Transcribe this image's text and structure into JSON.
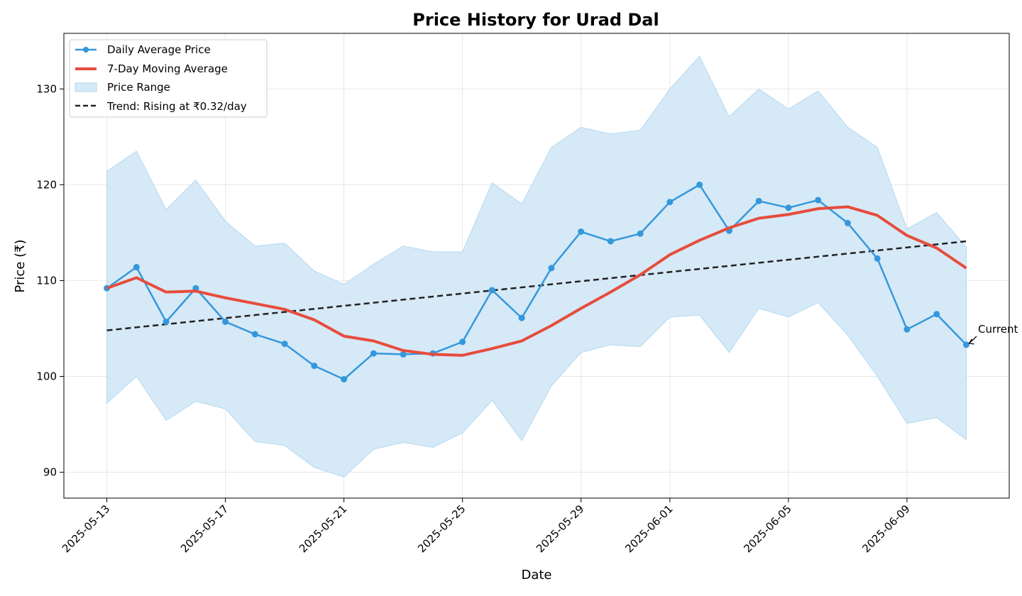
{
  "chart_data": {
    "type": "line",
    "title": "Price History for Urad Dal",
    "xlabel": "Date",
    "ylabel": "Price (₹)",
    "grid": true,
    "legend_position": "upper-left",
    "colors": {
      "daily": "#3498db",
      "moving_avg": "#e74c3c",
      "range_fill": "#d6e9f7",
      "range_edge": "#aed6f1",
      "trend": "#222222"
    },
    "x": [
      "2025-05-13",
      "2025-05-14",
      "2025-05-15",
      "2025-05-16",
      "2025-05-17",
      "2025-05-18",
      "2025-05-19",
      "2025-05-20",
      "2025-05-21",
      "2025-05-22",
      "2025-05-23",
      "2025-05-24",
      "2025-05-25",
      "2025-05-26",
      "2025-05-27",
      "2025-05-28",
      "2025-05-29",
      "2025-05-30",
      "2025-05-31",
      "2025-06-01",
      "2025-06-02",
      "2025-06-03",
      "2025-06-04",
      "2025-06-05",
      "2025-06-06",
      "2025-06-07",
      "2025-06-08",
      "2025-06-09",
      "2025-06-10",
      "2025-06-11"
    ],
    "x_ticks": [
      "2025-05-13",
      "2025-05-17",
      "2025-05-21",
      "2025-05-25",
      "2025-05-29",
      "2025-06-01",
      "2025-06-05",
      "2025-06-09"
    ],
    "ylim": [
      87.3,
      135.8
    ],
    "y_ticks": [
      90,
      100,
      110,
      120,
      130
    ],
    "series": [
      {
        "name": "Daily Average Price",
        "style": "line-markers",
        "values": [
          109.2,
          111.4,
          105.7,
          109.2,
          105.7,
          104.4,
          103.4,
          101.1,
          99.7,
          102.4,
          102.3,
          102.4,
          103.6,
          109.0,
          106.1,
          111.3,
          115.1,
          114.1,
          114.9,
          118.2,
          120.0,
          115.2,
          118.3,
          117.6,
          118.4,
          116.0,
          112.3,
          104.9,
          106.5,
          103.3
        ]
      },
      {
        "name": "7-Day Moving Average",
        "style": "thick-line",
        "values": [
          109.2,
          110.3,
          108.8,
          108.9,
          108.2,
          107.6,
          107.0,
          105.9,
          104.2,
          103.7,
          102.7,
          102.3,
          102.2,
          102.9,
          103.7,
          105.3,
          107.1,
          108.8,
          110.6,
          112.7,
          114.2,
          115.5,
          116.5,
          116.9,
          117.5,
          117.7,
          116.8,
          114.7,
          113.4,
          111.3
        ]
      }
    ],
    "range": {
      "name": "Price Range",
      "upper": [
        121.4,
        123.5,
        117.4,
        120.5,
        116.2,
        113.6,
        113.9,
        111.0,
        109.6,
        111.7,
        113.6,
        113.0,
        113.0,
        120.2,
        118.0,
        123.9,
        126.0,
        125.3,
        125.7,
        130.0,
        133.4,
        127.1,
        130.0,
        127.9,
        129.8,
        126.0,
        123.9,
        115.4,
        117.1,
        113.5
      ],
      "lower": [
        97.2,
        100.0,
        95.4,
        97.4,
        96.6,
        93.2,
        92.8,
        90.5,
        89.5,
        92.4,
        93.1,
        92.6,
        94.1,
        97.5,
        93.3,
        99.0,
        102.5,
        103.3,
        103.1,
        106.2,
        106.4,
        102.5,
        107.1,
        106.2,
        107.7,
        104.3,
        100.0,
        95.1,
        95.7,
        93.4
      ]
    },
    "trend": {
      "name": "Trend: Rising at ₹0.32/day",
      "start": 104.8,
      "end": 114.1
    },
    "annotation": {
      "text": "Current",
      "target_date": "2025-06-11",
      "target_value": 103.3
    }
  }
}
